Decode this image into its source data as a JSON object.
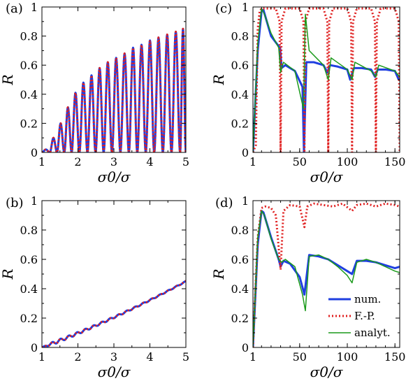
{
  "chart_data": [
    {
      "panel": "(a)",
      "type": "line",
      "xlabel": "σ0/σ",
      "ylabel": "R",
      "xlim": [
        1,
        5
      ],
      "ylim": [
        0,
        1
      ],
      "xticks": [
        1,
        2,
        3,
        4,
        5
      ],
      "yticks": [
        0,
        0.2,
        0.4,
        0.6,
        0.8,
        1
      ],
      "x_tick_labels": [
        "1",
        "2",
        "3",
        "4",
        "5"
      ],
      "y_tick_labels": [
        "0",
        "0.2",
        "0.4",
        "0.6",
        "0.8",
        "1"
      ],
      "series": [
        {
          "style": "num",
          "color": "#1f3fe0",
          "peak_x": [
            1.12,
            1.32,
            1.52,
            1.72,
            1.93,
            2.15,
            2.38,
            2.6,
            2.83,
            3.06,
            3.3,
            3.53,
            3.77,
            4.0,
            4.24,
            4.48,
            4.72,
            4.96
          ],
          "peak_y": [
            0.02,
            0.1,
            0.2,
            0.31,
            0.41,
            0.48,
            0.53,
            0.58,
            0.62,
            0.65,
            0.68,
            0.72,
            0.74,
            0.77,
            0.79,
            0.81,
            0.83,
            0.85
          ]
        },
        {
          "style": "F.-P.",
          "color": "#e02020",
          "peak_x": [
            1.12,
            1.32,
            1.52,
            1.72,
            1.93,
            2.15,
            2.38,
            2.6,
            2.83,
            3.06,
            3.3,
            3.53,
            3.77,
            4.0,
            4.24,
            4.48,
            4.72,
            4.96
          ],
          "peak_y": [
            0.02,
            0.1,
            0.2,
            0.31,
            0.41,
            0.48,
            0.53,
            0.58,
            0.62,
            0.65,
            0.68,
            0.72,
            0.74,
            0.77,
            0.79,
            0.81,
            0.83,
            0.85
          ]
        }
      ]
    },
    {
      "panel": "(b)",
      "type": "line",
      "xlabel": "σ0/σ",
      "ylabel": "R",
      "xlim": [
        1,
        5
      ],
      "ylim": [
        0,
        1
      ],
      "xticks": [
        1,
        2,
        3,
        4,
        5
      ],
      "yticks": [
        0,
        0.2,
        0.4,
        0.6,
        0.8,
        1
      ],
      "x_tick_labels": [
        "1",
        "2",
        "3",
        "4",
        "5"
      ],
      "y_tick_labels": [
        "0",
        "0.2",
        "0.4",
        "0.6",
        "0.8",
        "1"
      ],
      "series": [
        {
          "style": "num",
          "color": "#1f3fe0",
          "x": [
            1.0,
            1.5,
            2.0,
            2.5,
            3.0,
            3.5,
            4.0,
            4.5,
            5.0
          ],
          "y": [
            0.0,
            0.03,
            0.09,
            0.16,
            0.22,
            0.28,
            0.34,
            0.39,
            0.45
          ]
        },
        {
          "style": "F.-P.",
          "color": "#e02020",
          "x": [
            1.0,
            1.5,
            2.0,
            2.5,
            3.0,
            3.5,
            4.0,
            4.5,
            5.0
          ],
          "y": [
            0.0,
            0.03,
            0.09,
            0.16,
            0.22,
            0.28,
            0.34,
            0.39,
            0.45
          ]
        }
      ]
    },
    {
      "panel": "(c)",
      "type": "line",
      "xlabel": "σ0/σ",
      "ylabel": "R",
      "xlim": [
        1,
        155
      ],
      "ylim": [
        0,
        1
      ],
      "xticks": [
        1,
        50,
        100,
        150
      ],
      "yticks": [
        0,
        0.2,
        0.4,
        0.6,
        0.8,
        1
      ],
      "x_tick_labels": [
        "1",
        "50",
        "100",
        "150"
      ],
      "y_tick_labels": [
        "0",
        "0.2",
        "0.4",
        "0.6",
        "0.8",
        "1"
      ],
      "resonances_x": [
        30,
        55,
        80,
        105,
        130
      ],
      "series": [
        {
          "style": "num",
          "color": "#1f3fe0",
          "x": [
            1,
            6,
            10,
            12,
            20,
            28,
            29.5,
            31,
            35,
            45,
            53,
            54.5,
            57,
            65,
            75,
            79,
            82,
            90,
            100,
            103,
            107,
            115,
            125,
            129,
            132,
            140,
            150,
            154
          ],
          "y": [
            0.0,
            0.7,
            0.97,
            0.98,
            0.8,
            0.73,
            0.72,
            0.58,
            0.6,
            0.56,
            0.45,
            0.0,
            0.62,
            0.62,
            0.6,
            0.55,
            0.6,
            0.59,
            0.57,
            0.5,
            0.58,
            0.58,
            0.57,
            0.52,
            0.57,
            0.57,
            0.56,
            0.5
          ]
        },
        {
          "style": "F.-P.",
          "color": "#e02020",
          "x": [
            1,
            4,
            6,
            8,
            10,
            15,
            25,
            29,
            30,
            31,
            35,
            50,
            54,
            55,
            56,
            60,
            75,
            79,
            80,
            81,
            85,
            100,
            104,
            105,
            106,
            110,
            125,
            129,
            130,
            131,
            135,
            150,
            154,
            155
          ],
          "y": [
            0.0,
            0.05,
            0.85,
            0.97,
            0.99,
            0.99,
            0.99,
            0.9,
            0.0,
            0.9,
            0.99,
            0.99,
            0.9,
            0.0,
            0.9,
            0.99,
            0.99,
            0.9,
            0.0,
            0.9,
            0.99,
            0.99,
            0.9,
            0.0,
            0.9,
            0.99,
            0.99,
            0.9,
            0.0,
            0.9,
            0.99,
            0.99,
            0.9,
            0.0
          ]
        },
        {
          "style": "analyt.",
          "color": "#1a9a1a",
          "x": [
            1,
            6,
            10,
            13,
            20,
            28,
            30,
            33,
            45,
            54,
            56,
            60,
            75,
            80,
            83,
            100,
            105,
            108,
            125,
            130,
            133,
            150,
            155
          ],
          "y": [
            0.0,
            0.75,
            0.99,
            0.95,
            0.82,
            0.72,
            0.55,
            0.62,
            0.56,
            0.3,
            0.95,
            0.7,
            0.6,
            0.5,
            0.65,
            0.57,
            0.5,
            0.62,
            0.56,
            0.52,
            0.6,
            0.56,
            0.52
          ]
        }
      ]
    },
    {
      "panel": "(d)",
      "type": "line",
      "xlabel": "σ0/σ",
      "ylabel": "R",
      "xlim": [
        1,
        155
      ],
      "ylim": [
        0,
        1
      ],
      "xticks": [
        1,
        50,
        100,
        150
      ],
      "yticks": [
        0,
        0.2,
        0.4,
        0.6,
        0.8,
        1
      ],
      "x_tick_labels": [
        "1",
        "50",
        "100",
        "150"
      ],
      "y_tick_labels": [
        "0",
        "0.2",
        "0.4",
        "0.6",
        "0.8",
        "1"
      ],
      "legend": [
        "num.",
        "F.-P.",
        "analyt."
      ],
      "series": [
        {
          "name": "num.",
          "color": "#1f3fe0",
          "x": [
            1,
            6,
            10,
            12,
            20,
            28,
            30,
            33,
            40,
            50,
            55,
            60,
            70,
            80,
            90,
            100,
            105,
            110,
            120,
            130,
            140,
            150,
            155
          ],
          "y": [
            0.0,
            0.7,
            0.93,
            0.92,
            0.75,
            0.6,
            0.55,
            0.59,
            0.57,
            0.48,
            0.36,
            0.63,
            0.62,
            0.6,
            0.56,
            0.52,
            0.5,
            0.59,
            0.59,
            0.58,
            0.56,
            0.54,
            0.55
          ]
        },
        {
          "name": "F.-P.",
          "color": "#e02020",
          "x": [
            1,
            6,
            10,
            14,
            20,
            25,
            30,
            33,
            40,
            50,
            55,
            58,
            65,
            75,
            85,
            95,
            105,
            110,
            120,
            130,
            140,
            150,
            155
          ],
          "y": [
            0.0,
            0.75,
            0.95,
            0.96,
            0.95,
            0.9,
            0.53,
            0.93,
            0.97,
            0.96,
            0.82,
            0.96,
            0.98,
            0.97,
            0.96,
            0.98,
            0.93,
            0.97,
            0.98,
            0.96,
            0.98,
            0.97,
            0.96
          ]
        },
        {
          "name": "analyt.",
          "color": "#1a9a1a",
          "x": [
            1,
            6,
            10,
            13,
            20,
            28,
            31,
            35,
            45,
            53,
            56,
            60,
            70,
            80,
            90,
            100,
            105,
            110,
            120,
            130,
            140,
            150,
            155
          ],
          "y": [
            0.0,
            0.75,
            0.93,
            0.9,
            0.74,
            0.6,
            0.58,
            0.6,
            0.55,
            0.36,
            0.25,
            0.62,
            0.63,
            0.6,
            0.55,
            0.49,
            0.44,
            0.58,
            0.6,
            0.58,
            0.55,
            0.52,
            0.51
          ]
        }
      ]
    }
  ]
}
